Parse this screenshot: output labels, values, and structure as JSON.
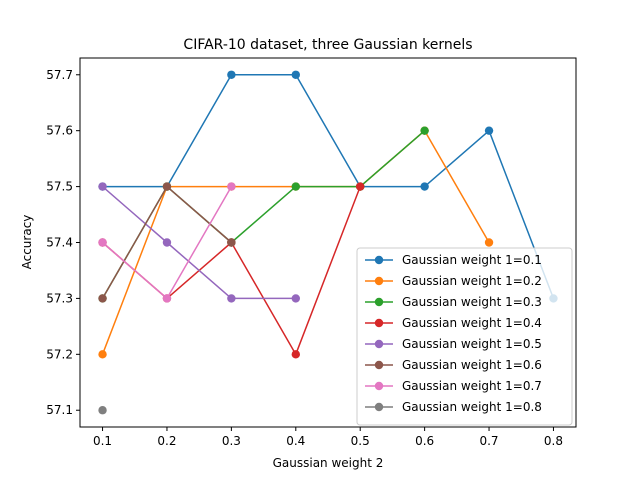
{
  "chart_data": {
    "type": "line",
    "title": "CIFAR-10 dataset, three Gaussian kernels",
    "xlabel": "Gaussian weight 2",
    "ylabel": "Accuracy",
    "xlim": [
      0.065,
      0.835
    ],
    "ylim": [
      57.07,
      57.73
    ],
    "xticks": [
      0.1,
      0.2,
      0.3,
      0.4,
      0.5,
      0.6,
      0.7,
      0.8
    ],
    "xtick_labels": [
      "0.1",
      "0.2",
      "0.3",
      "0.4",
      "0.5",
      "0.6",
      "0.7",
      "0.8"
    ],
    "yticks": [
      57.1,
      57.2,
      57.3,
      57.4,
      57.5,
      57.6,
      57.7
    ],
    "ytick_labels": [
      "57.1",
      "57.2",
      "57.3",
      "57.4",
      "57.5",
      "57.6",
      "57.7"
    ],
    "grid": false,
    "legend_position": "lower-right",
    "series": [
      {
        "name": "Gaussian weight 1=0.1",
        "color": "#1f77b4",
        "x": [
          0.1,
          0.2,
          0.3,
          0.4,
          0.5,
          0.6,
          0.7,
          0.8
        ],
        "y": [
          57.5,
          57.5,
          57.7,
          57.7,
          57.5,
          57.5,
          57.6,
          57.3
        ]
      },
      {
        "name": "Gaussian weight 1=0.2",
        "color": "#ff7f0e",
        "x": [
          0.1,
          0.2,
          0.3,
          0.4,
          0.5,
          0.6,
          0.7
        ],
        "y": [
          57.2,
          57.5,
          57.5,
          57.5,
          57.5,
          57.6,
          57.4
        ]
      },
      {
        "name": "Gaussian weight 1=0.3",
        "color": "#2ca02c",
        "x": [
          0.1,
          0.2,
          0.3,
          0.4,
          0.5,
          0.6
        ],
        "y": [
          57.3,
          57.5,
          57.4,
          57.5,
          57.5,
          57.6
        ]
      },
      {
        "name": "Gaussian weight 1=0.4",
        "color": "#d62728",
        "x": [
          0.1,
          0.2,
          0.3,
          0.4,
          0.5
        ],
        "y": [
          57.4,
          57.3,
          57.4,
          57.2,
          57.5
        ]
      },
      {
        "name": "Gaussian weight 1=0.5",
        "color": "#9467bd",
        "x": [
          0.1,
          0.2,
          0.3,
          0.4
        ],
        "y": [
          57.5,
          57.4,
          57.3,
          57.3
        ]
      },
      {
        "name": "Gaussian weight 1=0.6",
        "color": "#8c564b",
        "x": [
          0.1,
          0.2,
          0.3
        ],
        "y": [
          57.3,
          57.5,
          57.4
        ]
      },
      {
        "name": "Gaussian weight 1=0.7",
        "color": "#e377c2",
        "x": [
          0.1,
          0.2,
          0.3
        ],
        "y": [
          57.4,
          57.3,
          57.5
        ]
      },
      {
        "name": "Gaussian weight 1=0.8",
        "color": "#7f7f7f",
        "x": [
          0.1
        ],
        "y": [
          57.1
        ]
      }
    ]
  }
}
